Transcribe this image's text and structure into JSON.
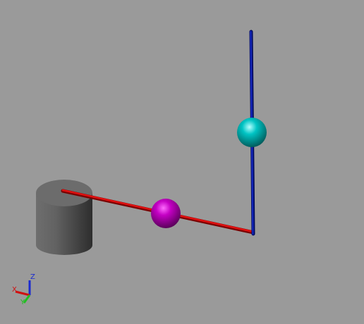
{
  "viewport": {
    "background_color": "#9a9a9a"
  },
  "scene": {
    "cylinder": {
      "color_body": "#5b5b5b",
      "color_top": "#6c6c6c"
    },
    "red_rod": {
      "color": "#cc0000"
    },
    "blue_rod": {
      "color": "#0a1aa0"
    },
    "magenta_sphere": {
      "color": "#c400c4"
    },
    "cyan_sphere": {
      "color": "#00c4c4"
    }
  },
  "axis_triad": {
    "x_label": "X",
    "y_label": "Y",
    "z_label": "Z",
    "x_color": "#d01010",
    "y_color": "#20c020",
    "z_color": "#1a2ad0"
  }
}
